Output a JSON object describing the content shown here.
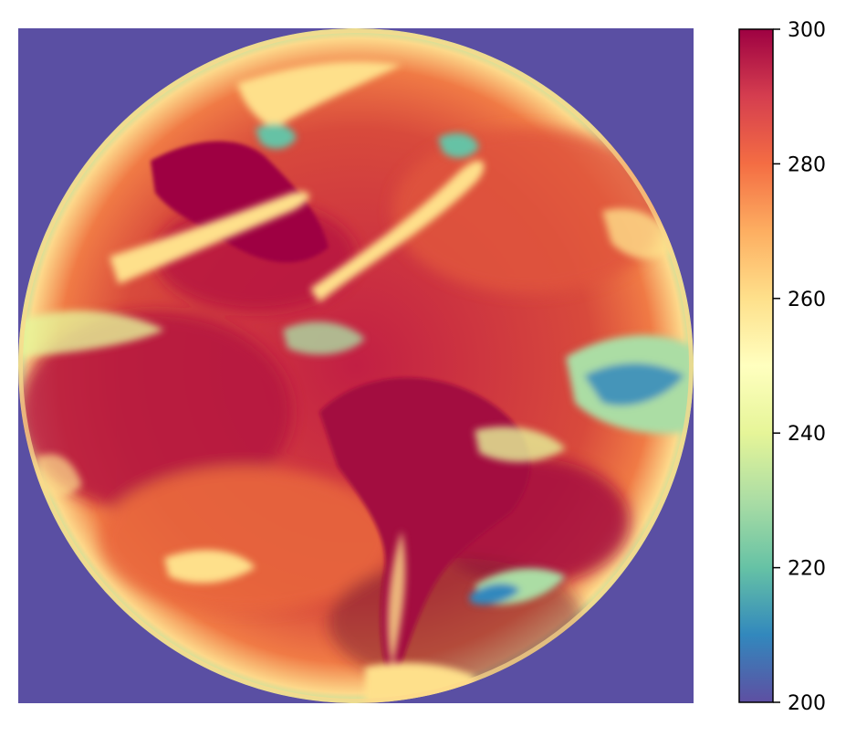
{
  "figure": {
    "background_color": "#5a4fa3",
    "disk_fill_description_colors": [
      "#9e0142",
      "#d53e4f",
      "#f46d43",
      "#fdae61",
      "#fee08b",
      "#e6f598",
      "#abdda4",
      "#66c2a5",
      "#3288bd",
      "#5e4fa2"
    ]
  },
  "colorbar": {
    "min": 200,
    "max": 300,
    "colormap": "Spectral_r",
    "ticks": [
      {
        "value": 300,
        "label": "300"
      },
      {
        "value": 280,
        "label": "280"
      },
      {
        "value": 260,
        "label": "260"
      },
      {
        "value": 240,
        "label": "240"
      },
      {
        "value": 220,
        "label": "220"
      },
      {
        "value": 200,
        "label": "200"
      }
    ]
  }
}
